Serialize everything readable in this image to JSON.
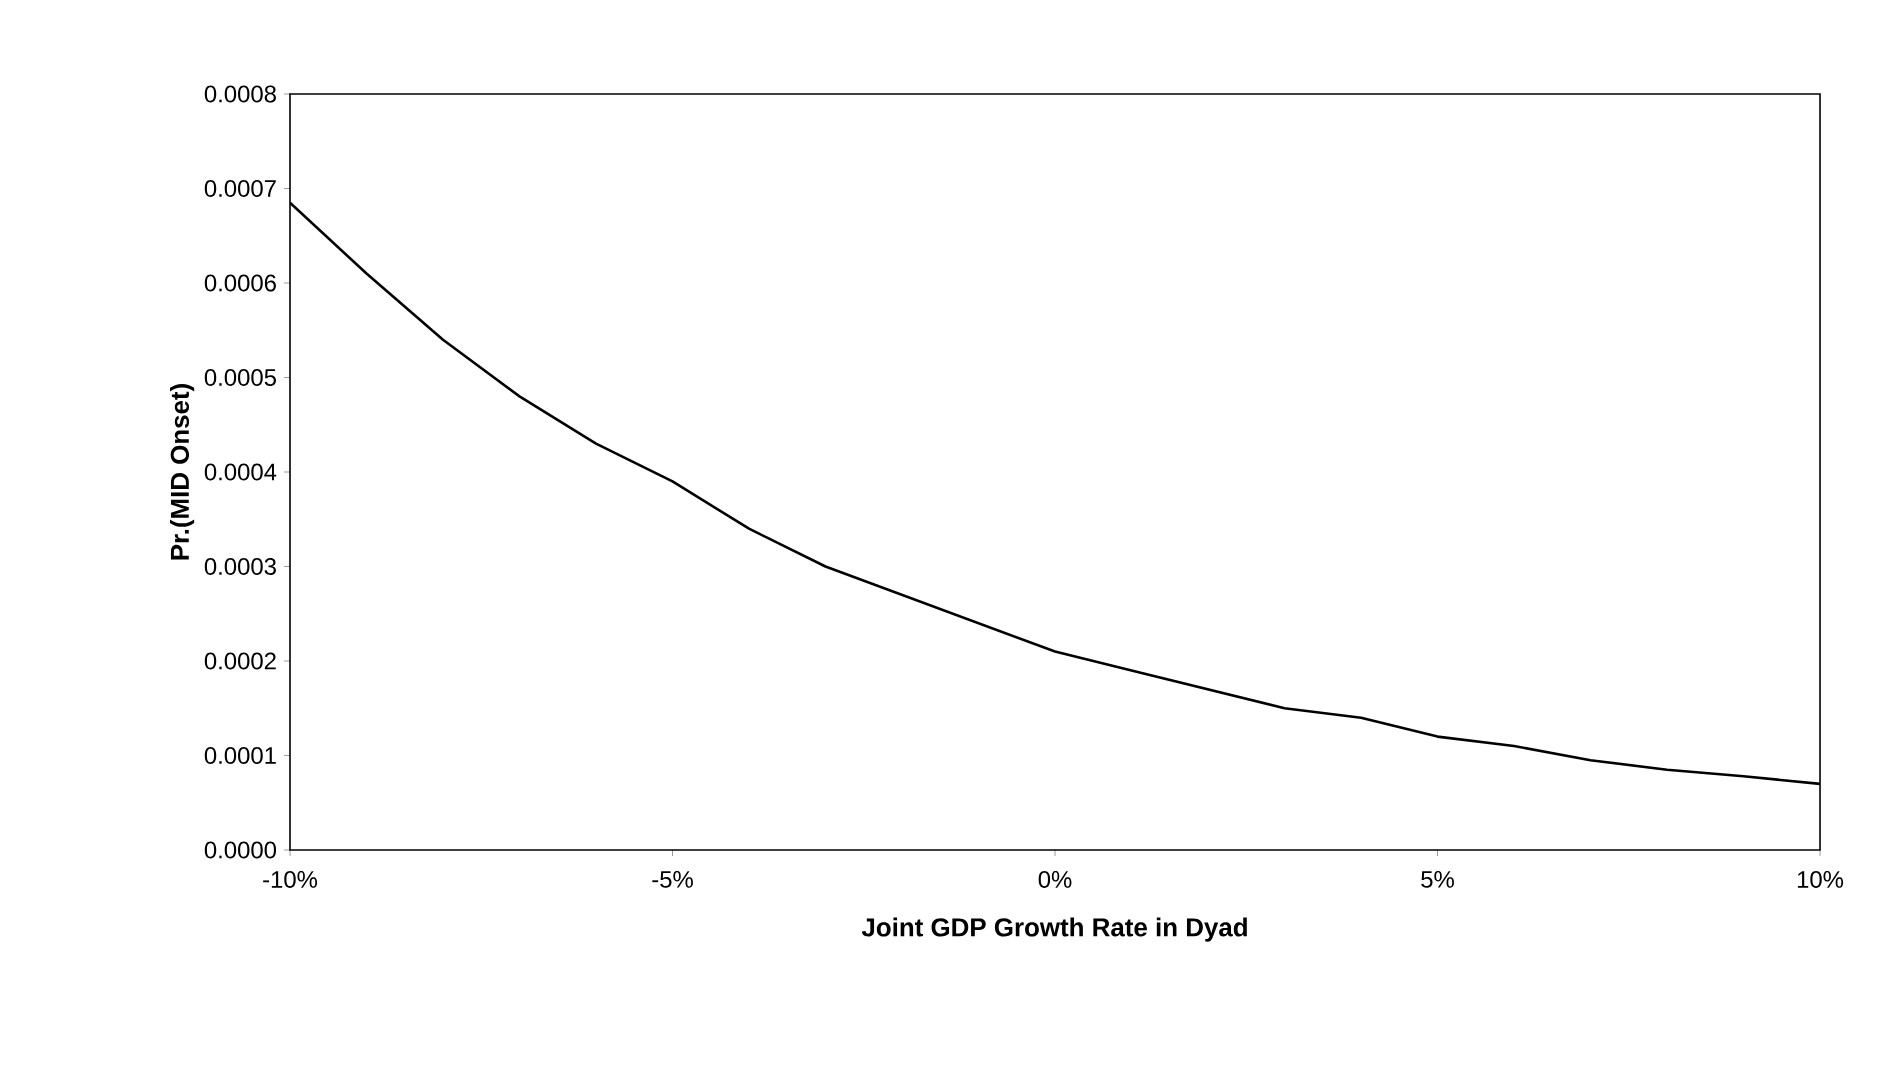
{
  "chart_data": {
    "type": "line",
    "xlabel": "Joint GDP Growth Rate in Dyad",
    "ylabel": "Pr.(MID Onset)",
    "x": [
      -10,
      -9,
      -8,
      -7,
      -6,
      -5,
      -4,
      -3,
      -2,
      -1,
      0,
      1,
      2,
      3,
      4,
      5,
      6,
      7,
      8,
      9,
      10
    ],
    "series": [
      {
        "color": "#000000",
        "values": [
          0.000685,
          0.00061,
          0.00054,
          0.00048,
          0.00043,
          0.00039,
          0.00034,
          0.0003,
          0.00027,
          0.00024,
          0.00021,
          0.00019,
          0.00017,
          0.00015,
          0.00014,
          0.00012,
          0.00011,
          9.5e-05,
          8.5e-05,
          7.8e-05,
          7e-05
        ]
      }
    ],
    "xlim": [
      -10,
      10
    ],
    "xticks": [
      {
        "value": -10,
        "label": "-10%"
      },
      {
        "value": -5,
        "label": "-5%"
      },
      {
        "value": 0,
        "label": "0%"
      },
      {
        "value": 5,
        "label": "5%"
      },
      {
        "value": 10,
        "label": "10%"
      }
    ],
    "ylim": [
      0,
      0.0008
    ],
    "yticks": [
      {
        "value": 0,
        "label": "0.0000"
      },
      {
        "value": 0.0001,
        "label": "0.0001"
      },
      {
        "value": 0.0002,
        "label": "0.0002"
      },
      {
        "value": 0.0003,
        "label": "0.0003"
      },
      {
        "value": 0.0004,
        "label": "0.0004"
      },
      {
        "value": 0.0005,
        "label": "0.0005"
      },
      {
        "value": 0.0006,
        "label": "0.0006"
      },
      {
        "value": 0.0007,
        "label": "0.0007"
      },
      {
        "value": 0.0008,
        "label": "0.0008"
      }
    ]
  }
}
